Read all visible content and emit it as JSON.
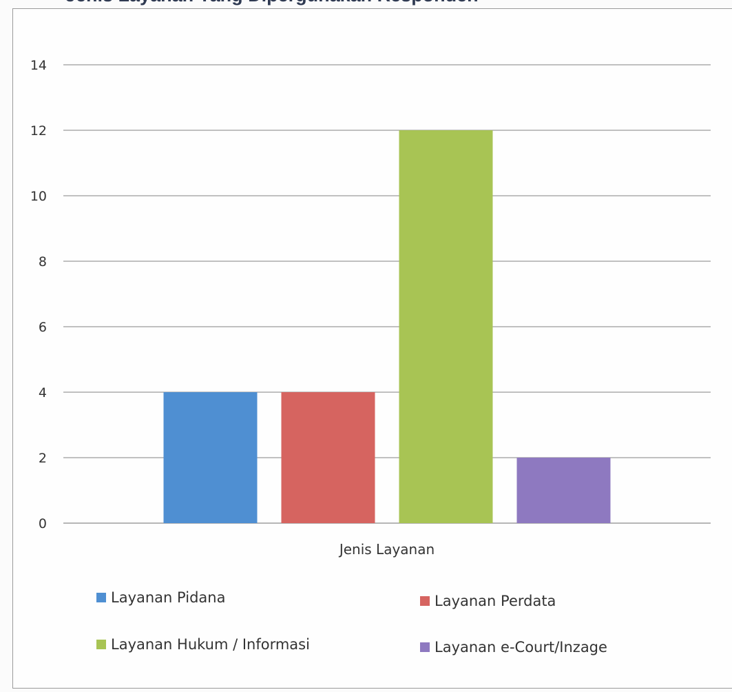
{
  "chart_data": {
    "type": "bar",
    "title": "Jenis Layanan Yang Dipergunakan Responden",
    "xlabel": "Jenis Layanan",
    "ylabel": "",
    "categories": [
      "Jenis Layanan"
    ],
    "ylim": [
      0,
      14
    ],
    "yticks": [
      0,
      2,
      4,
      6,
      8,
      10,
      12,
      14
    ],
    "grid": true,
    "legend_position": "bottom",
    "series": [
      {
        "name": "Layanan Pidana",
        "values": [
          4
        ],
        "color": "#4f8fd2"
      },
      {
        "name": "Layanan Perdata",
        "values": [
          4
        ],
        "color": "#d66460"
      },
      {
        "name": "Layanan Hukum / Informasi",
        "values": [
          12
        ],
        "color": "#a8c454"
      },
      {
        "name": "Layanan e-Court/Inzage",
        "values": [
          2
        ],
        "color": "#8e79c0"
      }
    ]
  }
}
